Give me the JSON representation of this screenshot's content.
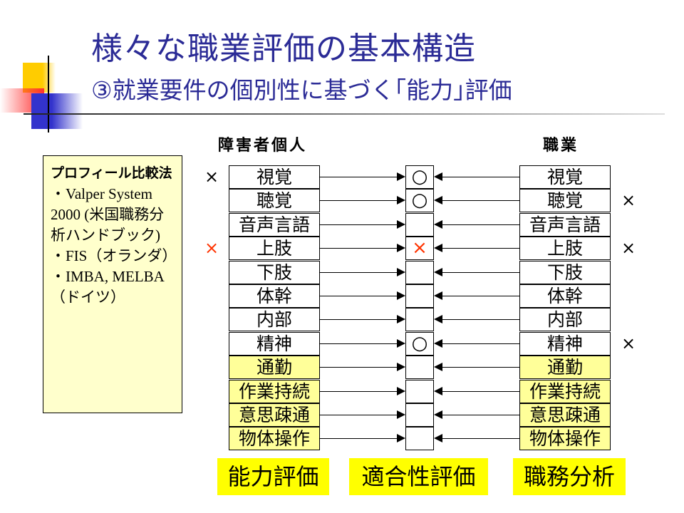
{
  "title": {
    "line1": "様々な職業評価の基本構造",
    "line2": "③就業要件の個別性に基づく｢能力｣評価"
  },
  "headers": {
    "left": "障害者個人",
    "right": "職業"
  },
  "note": {
    "heading": "プロフィール比較法",
    "lines": [
      "・Valper System 2000 (米国職務分析ハンドブック)",
      "・FIS（オランダ）",
      "・IMBA, MELBA（ドイツ）"
    ]
  },
  "rows": [
    {
      "label": "視覚",
      "highlight": false,
      "left_mark": "×",
      "left_mark_color": "#000000",
      "result": "○",
      "result_color": "#000000",
      "right_mark": ""
    },
    {
      "label": "聴覚",
      "highlight": false,
      "left_mark": "",
      "result": "○",
      "result_color": "#000000",
      "right_mark": "×"
    },
    {
      "label": "音声言語",
      "highlight": false,
      "left_mark": "",
      "result": "",
      "right_mark": ""
    },
    {
      "label": "上肢",
      "highlight": false,
      "left_mark": "×",
      "left_mark_color": "#ff3300",
      "result": "×",
      "result_color": "#ff3300",
      "right_mark": "×"
    },
    {
      "label": "下肢",
      "highlight": false,
      "left_mark": "",
      "result": "",
      "right_mark": ""
    },
    {
      "label": "体幹",
      "highlight": false,
      "left_mark": "",
      "result": "",
      "right_mark": ""
    },
    {
      "label": "内部",
      "highlight": false,
      "left_mark": "",
      "result": "",
      "right_mark": ""
    },
    {
      "label": "精神",
      "highlight": false,
      "left_mark": "",
      "result": "○",
      "result_color": "#000000",
      "right_mark": "×"
    },
    {
      "label": "通勤",
      "highlight": true,
      "left_mark": "",
      "result": "",
      "right_mark": ""
    },
    {
      "label": "作業持続",
      "highlight": true,
      "left_mark": "",
      "result": "",
      "right_mark": ""
    },
    {
      "label": "意思疎通",
      "highlight": true,
      "left_mark": "",
      "result": "",
      "right_mark": ""
    },
    {
      "label": "物体操作",
      "highlight": true,
      "left_mark": "",
      "result": "",
      "right_mark": ""
    }
  ],
  "footer_labels": {
    "left": "能力評価",
    "middle": "適合性評価",
    "right": "職務分析"
  },
  "colors": {
    "title": "#2b2b96",
    "label_bg": "#ffff00",
    "highlight_row": "#ffff99",
    "note_bg": "#ffffcc",
    "negative_mark": "#ff3300"
  }
}
